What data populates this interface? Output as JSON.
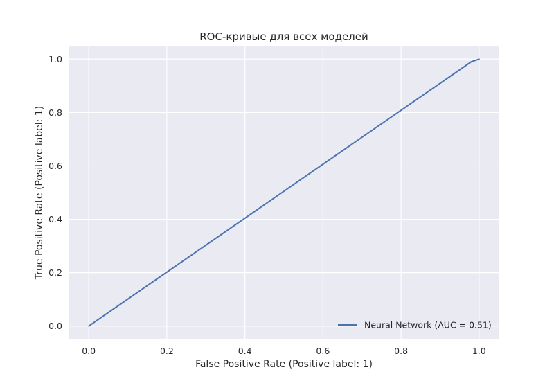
{
  "chart_data": {
    "type": "line",
    "title": "ROC-кривые для всех моделей",
    "xlabel": "False Positive Rate (Positive label: 1)",
    "ylabel": "True Positive Rate (Positive label: 1)",
    "xlim": [
      -0.05,
      1.05
    ],
    "ylim": [
      -0.05,
      1.05
    ],
    "xticks": [
      0.0,
      0.2,
      0.4,
      0.6,
      0.8,
      1.0
    ],
    "yticks": [
      0.0,
      0.2,
      0.4,
      0.6,
      0.8,
      1.0
    ],
    "xtick_labels": [
      "0.0",
      "0.2",
      "0.4",
      "0.6",
      "0.8",
      "1.0"
    ],
    "ytick_labels": [
      "0.0",
      "0.2",
      "0.4",
      "0.6",
      "0.8",
      "1.0"
    ],
    "grid": true,
    "legend_position": "lower-right",
    "series": [
      {
        "name": "Neural Network (AUC = 0.51)",
        "color": "#4c72b0",
        "x": [
          0.0,
          0.98,
          1.0
        ],
        "y": [
          0.0,
          0.99,
          1.0
        ]
      }
    ]
  },
  "colors": {
    "plot_background": "#eaeaf2",
    "grid": "#ffffff",
    "text": "#262626"
  }
}
